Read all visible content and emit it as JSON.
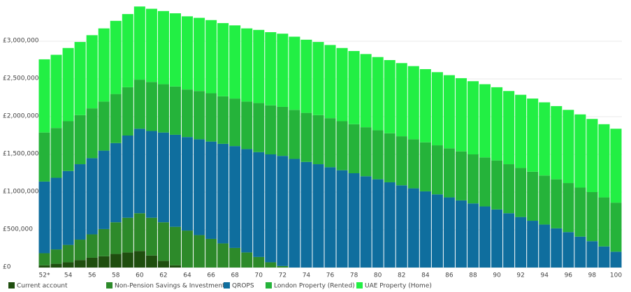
{
  "chart_data": {
    "type": "stacked_bar",
    "categories": [
      "52*",
      null,
      "54",
      null,
      "56",
      null,
      "58",
      null,
      "60",
      null,
      "62",
      null,
      "64",
      null,
      "66",
      null,
      "68",
      null,
      "70",
      null,
      "72",
      null,
      "74",
      null,
      "76",
      null,
      "78",
      null,
      "80",
      null,
      "82",
      null,
      "84",
      null,
      "86",
      null,
      "88",
      null,
      "90",
      null,
      "92",
      null,
      "94",
      null,
      "96",
      null,
      "98",
      null,
      "100"
    ],
    "series": [
      {
        "name": "Current account",
        "color": "#1f4e0f",
        "values": [
          30000,
          50000,
          70000,
          100000,
          130000,
          150000,
          180000,
          200000,
          220000,
          160000,
          90000,
          30000,
          0,
          0,
          0,
          0,
          0,
          0,
          0,
          0,
          0,
          0,
          0,
          0,
          0,
          0,
          0,
          0,
          0,
          0,
          0,
          0,
          0,
          0,
          0,
          0,
          0,
          0,
          0,
          0,
          0,
          0,
          0,
          0,
          0,
          0,
          0,
          0,
          0
        ]
      },
      {
        "name": "Non-Pension Savings & Investments",
        "color": "#2d8a2a",
        "values": [
          160000,
          190000,
          230000,
          270000,
          310000,
          360000,
          420000,
          460000,
          500000,
          500000,
          510000,
          510000,
          490000,
          430000,
          380000,
          320000,
          260000,
          200000,
          140000,
          70000,
          20000,
          0,
          0,
          0,
          0,
          0,
          0,
          0,
          0,
          0,
          0,
          0,
          0,
          0,
          0,
          0,
          0,
          0,
          0,
          0,
          0,
          0,
          0,
          0,
          0,
          0,
          0,
          0,
          0
        ]
      },
      {
        "name": "QROPS",
        "color": "#0f6e9e",
        "values": [
          950000,
          950000,
          980000,
          1000000,
          1010000,
          1040000,
          1050000,
          1090000,
          1120000,
          1150000,
          1190000,
          1220000,
          1240000,
          1270000,
          1290000,
          1320000,
          1350000,
          1370000,
          1390000,
          1430000,
          1460000,
          1440000,
          1400000,
          1370000,
          1330000,
          1290000,
          1250000,
          1210000,
          1170000,
          1130000,
          1090000,
          1050000,
          1010000,
          970000,
          930000,
          890000,
          850000,
          810000,
          770000,
          720000,
          670000,
          620000,
          570000,
          520000,
          470000,
          410000,
          350000,
          280000,
          210000
        ]
      },
      {
        "name": "London Property (Rented)",
        "color": "#25b33a",
        "values": [
          650000,
          660000,
          660000,
          650000,
          660000,
          650000,
          650000,
          640000,
          650000,
          650000,
          640000,
          640000,
          630000,
          640000,
          640000,
          630000,
          630000,
          630000,
          650000,
          650000,
          650000,
          650000,
          650000,
          650000,
          650000,
          650000,
          650000,
          650000,
          650000,
          650000,
          650000,
          650000,
          650000,
          650000,
          650000,
          650000,
          650000,
          650000,
          650000,
          650000,
          650000,
          650000,
          650000,
          650000,
          650000,
          650000,
          650000,
          650000,
          650000
        ]
      },
      {
        "name": "UAE Property (Home)",
        "color": "#22ef44",
        "values": [
          970000,
          970000,
          970000,
          970000,
          970000,
          970000,
          970000,
          970000,
          970000,
          970000,
          970000,
          970000,
          970000,
          970000,
          970000,
          970000,
          970000,
          970000,
          970000,
          970000,
          970000,
          970000,
          970000,
          970000,
          970000,
          970000,
          970000,
          970000,
          970000,
          970000,
          970000,
          970000,
          970000,
          970000,
          970000,
          970000,
          970000,
          970000,
          970000,
          970000,
          970000,
          970000,
          970000,
          970000,
          970000,
          970000,
          970000,
          970000,
          980000
        ]
      }
    ],
    "ylim": [
      0,
      3500000
    ],
    "yticks": [
      {
        "value": 0,
        "label": "£0"
      },
      {
        "value": 500000,
        "label": "£500,000"
      },
      {
        "value": 1000000,
        "label": "£1,000,000"
      },
      {
        "value": 1500000,
        "label": "£1,500,000"
      },
      {
        "value": 2000000,
        "label": "£2,000,000"
      },
      {
        "value": 2500000,
        "label": "£2,500,000"
      },
      {
        "value": 3000000,
        "label": "£3,000,000"
      }
    ],
    "grid": true,
    "legend": "bottom"
  }
}
